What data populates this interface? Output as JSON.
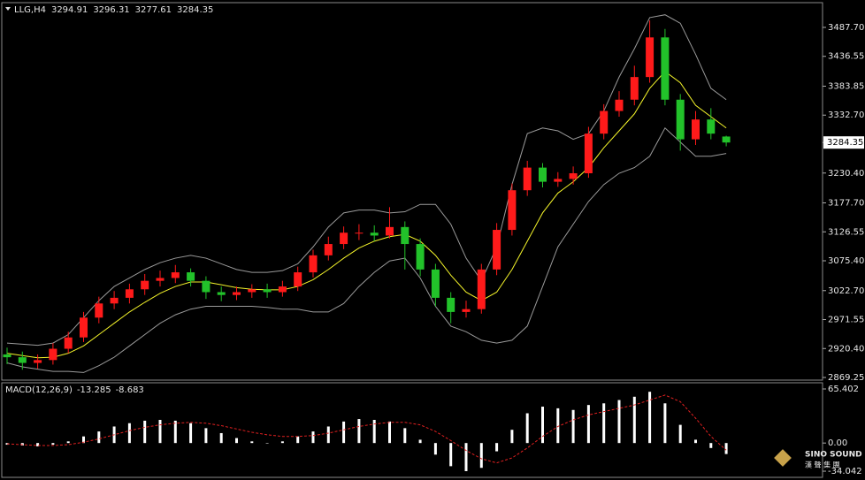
{
  "chart_data": [
    {
      "type": "candlestick",
      "title": "LLG,H4",
      "open": [
        2910,
        2905,
        2895,
        2900,
        2920,
        2940,
        2975,
        3000,
        3010,
        3025,
        3040,
        3045,
        3055,
        3040,
        3020,
        3015,
        3020,
        3025,
        3020,
        3030,
        3055,
        3085,
        3105,
        3125,
        3125,
        3120,
        3135,
        3105,
        3060,
        3010,
        2985,
        2990,
        3060,
        3130,
        3200,
        3240,
        3215,
        3220,
        3230,
        3300,
        3340,
        3360,
        3400,
        3470,
        3360,
        3290,
        3325,
        3294.91
      ],
      "high": [
        2922,
        2915,
        2910,
        2930,
        2950,
        2985,
        3012,
        3022,
        3035,
        3052,
        3058,
        3068,
        3062,
        3048,
        3030,
        3030,
        3034,
        3035,
        3040,
        3065,
        3095,
        3118,
        3136,
        3140,
        3138,
        3170,
        3145,
        3115,
        3070,
        3020,
        3005,
        3070,
        3142,
        3212,
        3252,
        3248,
        3232,
        3242,
        3312,
        3352,
        3375,
        3420,
        3500,
        3485,
        3370,
        3340,
        3345,
        3296.31
      ],
      "low": [
        2893,
        2883,
        2885,
        2892,
        2912,
        2932,
        2965,
        2990,
        3000,
        3015,
        3030,
        3036,
        3030,
        3008,
        3004,
        3006,
        3010,
        3010,
        3012,
        3022,
        3046,
        3076,
        3096,
        3112,
        3110,
        3115,
        3060,
        3048,
        2995,
        2965,
        2975,
        2982,
        3050,
        3120,
        3190,
        3205,
        3206,
        3210,
        3222,
        3290,
        3330,
        3350,
        3390,
        3350,
        3270,
        3280,
        3290,
        3277.61
      ],
      "close": [
        2905,
        2895,
        2900,
        2920,
        2940,
        2975,
        3000,
        3010,
        3025,
        3040,
        3045,
        3055,
        3040,
        3020,
        3015,
        3020,
        3025,
        3020,
        3030,
        3055,
        3085,
        3105,
        3125,
        3125,
        3120,
        3135,
        3105,
        3060,
        3010,
        2985,
        2990,
        3060,
        3130,
        3200,
        3240,
        3215,
        3220,
        3230,
        3300,
        3340,
        3360,
        3400,
        3470,
        3360,
        3290,
        3325,
        3300,
        3284.35
      ],
      "up_color": "#ff1a1a",
      "down_color": "#22c22a",
      "lines": [
        {
          "color": "#f5f52a",
          "values": [
            2912,
            2908,
            2904,
            2905,
            2912,
            2925,
            2945,
            2965,
            2985,
            3002,
            3018,
            3030,
            3038,
            3038,
            3033,
            3028,
            3025,
            3024,
            3024,
            3030,
            3042,
            3060,
            3080,
            3098,
            3110,
            3118,
            3122,
            3110,
            3085,
            3050,
            3020,
            3005,
            3020,
            3060,
            3110,
            3160,
            3195,
            3215,
            3240,
            3275,
            3305,
            3335,
            3380,
            3410,
            3390,
            3350,
            3330,
            3310
          ]
        },
        {
          "color": "#9a9a9a",
          "values": [
            2930,
            2928,
            2926,
            2930,
            2945,
            2975,
            3005,
            3030,
            3045,
            3060,
            3072,
            3080,
            3085,
            3080,
            3070,
            3060,
            3055,
            3055,
            3058,
            3070,
            3100,
            3135,
            3160,
            3165,
            3165,
            3160,
            3162,
            3175,
            3175,
            3140,
            3080,
            3040,
            3100,
            3210,
            3300,
            3310,
            3305,
            3290,
            3300,
            3340,
            3400,
            3450,
            3505,
            3510,
            3495,
            3440,
            3380,
            3360
          ]
        },
        {
          "color": "#9a9a9a",
          "values": [
            2895,
            2888,
            2884,
            2880,
            2880,
            2878,
            2890,
            2905,
            2925,
            2945,
            2965,
            2980,
            2990,
            2995,
            2995,
            2995,
            2995,
            2993,
            2990,
            2990,
            2985,
            2985,
            3000,
            3030,
            3055,
            3075,
            3080,
            3045,
            2995,
            2960,
            2950,
            2935,
            2930,
            2935,
            2960,
            3030,
            3100,
            3140,
            3180,
            3210,
            3230,
            3240,
            3260,
            3310,
            3285,
            3260,
            3260,
            3265
          ]
        }
      ],
      "ylim": [
        2864.6,
        3531.4
      ],
      "yticks": [
        {
          "value": 3487.7,
          "label": "3487.70"
        },
        3436.55,
        3383.85,
        {
          "value": 3332.7,
          "label": "3332.70"
        },
        {
          "value": 3230.4,
          "label": "3230.40"
        },
        {
          "value": 3177.7,
          "label": "3177.70"
        },
        3126.55,
        {
          "value": 3075.4,
          "label": "3075.40"
        },
        {
          "value": 3022.7,
          "label": "3022.70"
        },
        2971.55,
        {
          "value": 2920.4,
          "label": "2920.40"
        },
        2869.25
      ]
    },
    {
      "type": "macd",
      "title": "MACD(12,26,9)",
      "histogram": {
        "color": "#ffffff",
        "values": [
          -2,
          -3,
          -4,
          -2,
          2,
          8,
          14,
          20,
          24,
          27,
          28,
          27,
          24,
          18,
          12,
          6,
          2,
          0,
          2,
          8,
          14,
          20,
          26,
          29,
          28,
          26,
          18,
          4,
          -14,
          -28,
          -34,
          -30,
          -10,
          16,
          36,
          44,
          42,
          40,
          46,
          48,
          52,
          56,
          62,
          48,
          22,
          4,
          -6,
          -13.285
        ]
      },
      "signal": {
        "color": "#e02020",
        "values": [
          -1,
          -2,
          -3,
          -3,
          -2,
          1,
          5,
          10,
          15,
          19,
          22,
          24,
          25,
          24,
          21,
          17,
          13,
          10,
          8,
          8,
          9,
          12,
          16,
          20,
          23,
          25,
          25,
          22,
          14,
          3,
          -9,
          -19,
          -24,
          -18,
          -6,
          8,
          20,
          28,
          34,
          38,
          42,
          46,
          52,
          58,
          50,
          30,
          8,
          -8.683
        ]
      },
      "ylim": [
        -41.5,
        72.9
      ],
      "yticks": [
        65.402,
        {
          "value": 0,
          "label": "0.00"
        },
        -34.042
      ]
    }
  ],
  "watermark": {
    "brand": "SINO SOUND",
    "subtitle": "漢 聲 集 團"
  }
}
